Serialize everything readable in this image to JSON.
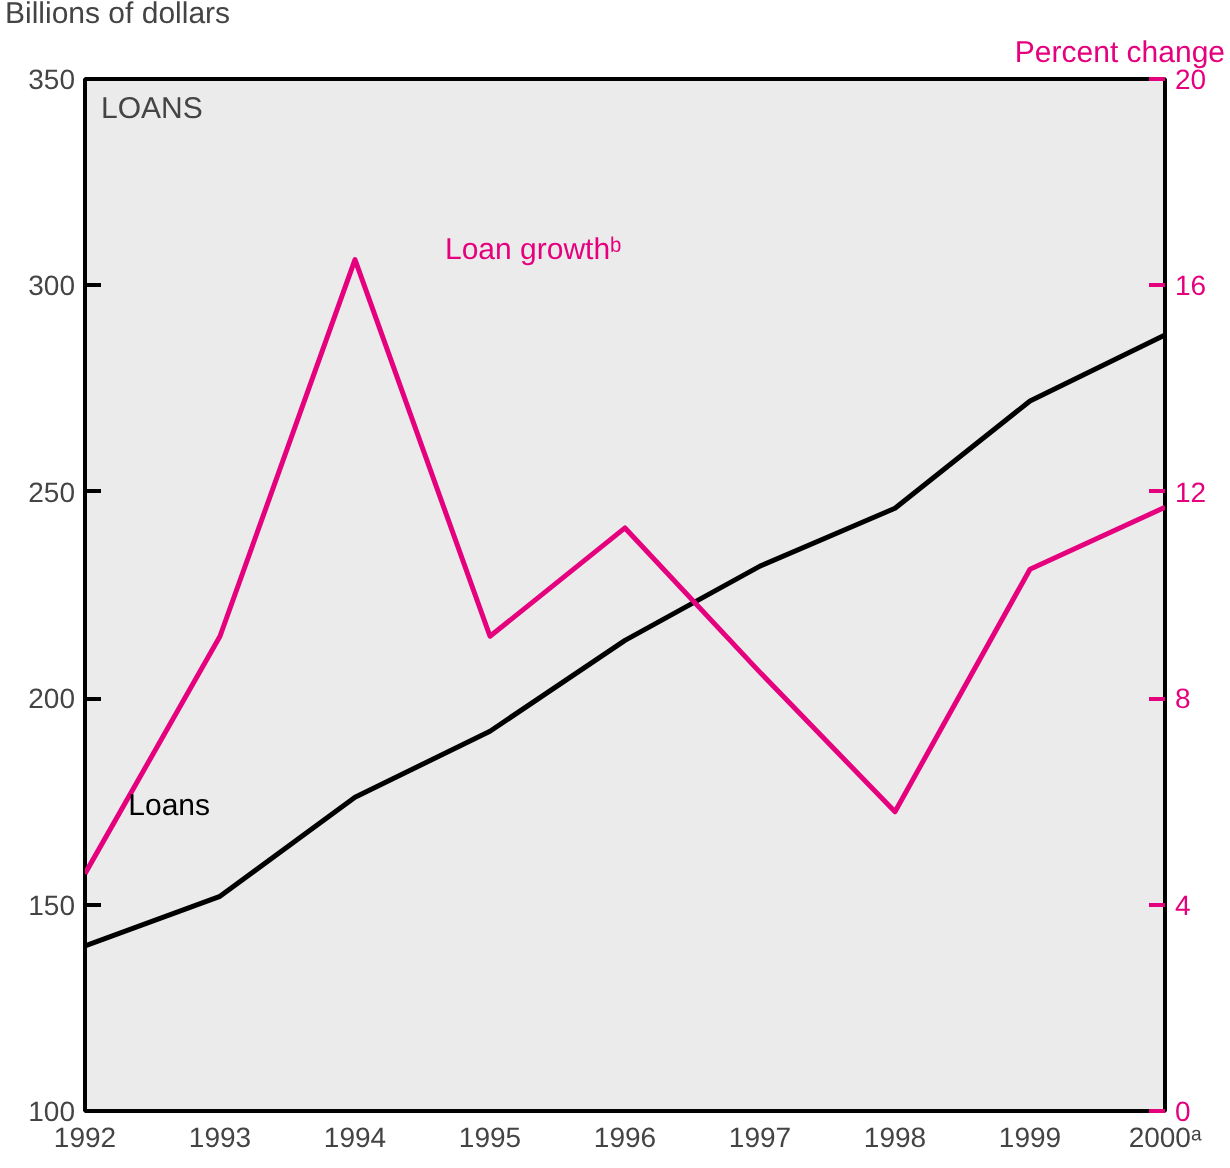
{
  "chart_data": {
    "type": "line",
    "title": "LOANS",
    "ylabel": "Billions of dollars",
    "y2label": "Percent change",
    "x": [
      1992,
      1993,
      1994,
      1995,
      1996,
      1997,
      1998,
      1999,
      2000
    ],
    "series": [
      {
        "name": "Loans",
        "color": "#000000",
        "values": [
          140,
          152,
          176,
          192,
          214,
          232,
          246,
          272,
          288
        ]
      },
      {
        "name": "Loan growthᵇ",
        "color": "#e5007d",
        "axis": "y2",
        "values": [
          4.6,
          9.2,
          16.5,
          9.2,
          11.3,
          8.5,
          5.8,
          10.5,
          11.7
        ]
      }
    ],
    "xlim": [
      1992,
      2000
    ],
    "xticks": [
      1992,
      1993,
      1994,
      1995,
      1996,
      1997,
      1998,
      1999,
      {
        "value": 2000,
        "label": "2000ᵃ"
      }
    ],
    "ylim": [
      100,
      350
    ],
    "yticks": [
      100,
      150,
      200,
      250,
      300,
      350
    ],
    "y2lim": [
      0,
      20
    ],
    "y2ticks": [
      0,
      4,
      8,
      12,
      16,
      20
    ],
    "grid": false,
    "legend": false,
    "marker": "none",
    "line_style": "solid"
  }
}
